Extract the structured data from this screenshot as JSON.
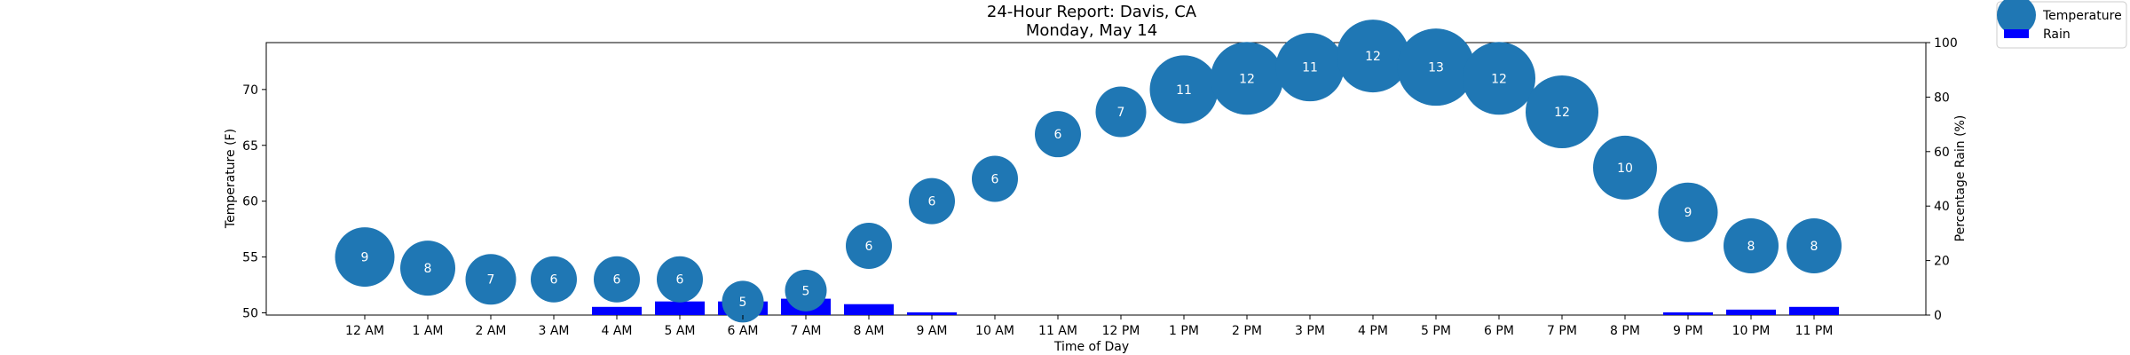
{
  "chart_data": {
    "type": "scatter",
    "title": "24-Hour Report: Davis, CA",
    "subtitle": "Monday, May 14",
    "xlabel": "Time of Day",
    "ylabel": "Temperature (F)",
    "y2label": "Percentage Rain (%)",
    "categories": [
      "12 AM",
      "1 AM",
      "2 AM",
      "3 AM",
      "4 AM",
      "5 AM",
      "6 AM",
      "7 AM",
      "8 AM",
      "9 AM",
      "10 AM",
      "11 AM",
      "12 PM",
      "1 PM",
      "2 PM",
      "3 PM",
      "4 PM",
      "5 PM",
      "6 PM",
      "7 PM",
      "8 PM",
      "9 PM",
      "10 PM",
      "11 PM"
    ],
    "ylim": [
      49.8,
      74.2
    ],
    "y2lim": [
      0,
      100
    ],
    "yticks": [
      50,
      55,
      60,
      65,
      70
    ],
    "y2ticks": [
      0,
      20,
      40,
      60,
      80,
      100
    ],
    "series": [
      {
        "name": "Temperature",
        "kind": "bubble",
        "color": "#1f77b4",
        "values": [
          55,
          54,
          53,
          53,
          53,
          53,
          51,
          52,
          56,
          60,
          62,
          66,
          68,
          70,
          71,
          72,
          73,
          72,
          71,
          68,
          63,
          59,
          56,
          56
        ],
        "labels": [
          9,
          8,
          7,
          6,
          6,
          6,
          5,
          5,
          6,
          6,
          6,
          6,
          7,
          11,
          12,
          11,
          12,
          13,
          12,
          12,
          10,
          9,
          8,
          8
        ]
      },
      {
        "name": "Rain",
        "kind": "bar",
        "axis": "right",
        "color": "#0000ff",
        "values": [
          0,
          0,
          0,
          0,
          3,
          5,
          5,
          6,
          4,
          1,
          0,
          0,
          0,
          0,
          0,
          0,
          0,
          0,
          0,
          0,
          0,
          1,
          2,
          3
        ]
      }
    ],
    "legend": "top-right",
    "grid": false
  }
}
